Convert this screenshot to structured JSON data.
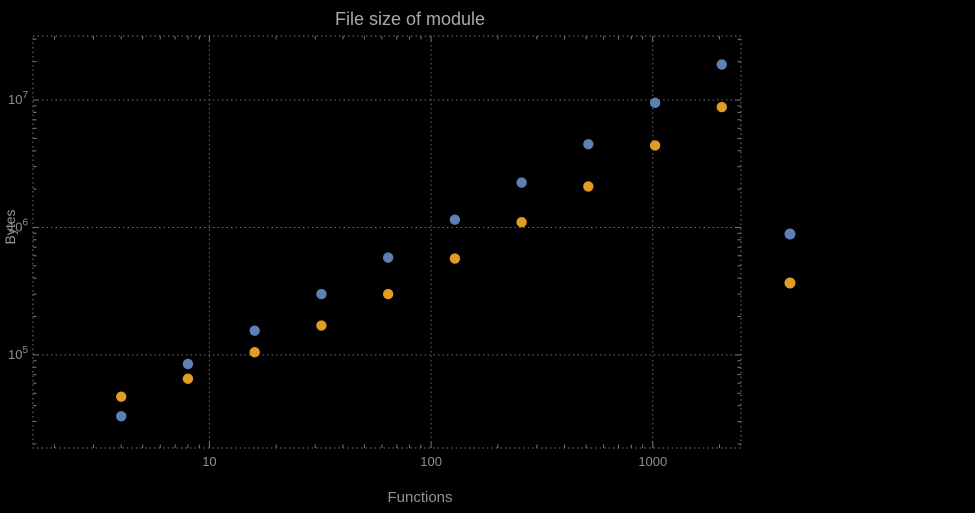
{
  "chart_data": {
    "type": "scatter",
    "title": "File size of module",
    "xlabel": "Functions",
    "ylabel": "Bytes",
    "x_scale": "log",
    "y_scale": "log",
    "xlim": [
      1.6,
      2500
    ],
    "ylim": [
      18600,
      31800000
    ],
    "x_ticks": [
      10,
      100,
      1000
    ],
    "x_tick_labels": [
      "10",
      "100",
      "1000"
    ],
    "y_ticks": [
      100000,
      1000000,
      10000000
    ],
    "y_tick_labels": [
      {
        "base": "10",
        "exp": "5"
      },
      {
        "base": "10",
        "exp": "6"
      },
      {
        "base": "10",
        "exp": "7"
      }
    ],
    "grid": "dotted",
    "frame": true,
    "series": [
      {
        "name": "series-1-blue",
        "color": "#5e81b5",
        "x": [
          4,
          8,
          16,
          32,
          64,
          128,
          256,
          512,
          1024,
          2048
        ],
        "y": [
          33000,
          85000,
          155000,
          300000,
          580000,
          1150000,
          2250000,
          4500000,
          9500000,
          19000000
        ]
      },
      {
        "name": "series-2-orange",
        "color": "#e19c24",
        "x": [
          4,
          8,
          16,
          32,
          64,
          128,
          256,
          512,
          1024,
          2048
        ],
        "y": [
          47000,
          65000,
          105000,
          170000,
          300000,
          570000,
          1100000,
          2100000,
          4400000,
          8800000
        ]
      }
    ],
    "legend": {
      "position": "right-outside",
      "labels_visible": false,
      "markers": [
        {
          "series": "series-1-blue",
          "color": "#5e81b5"
        },
        {
          "series": "series-2-orange",
          "color": "#e19c24"
        }
      ]
    }
  },
  "colors": {
    "background": "#000000",
    "frame": "#787878",
    "grid": "#6a6a6a",
    "title_text": "#a9a9a9",
    "axis_label_text": "#929292",
    "tick_label_text": "#8f8f8f",
    "series_blue": "#5e81b5",
    "series_orange": "#e19c24"
  }
}
